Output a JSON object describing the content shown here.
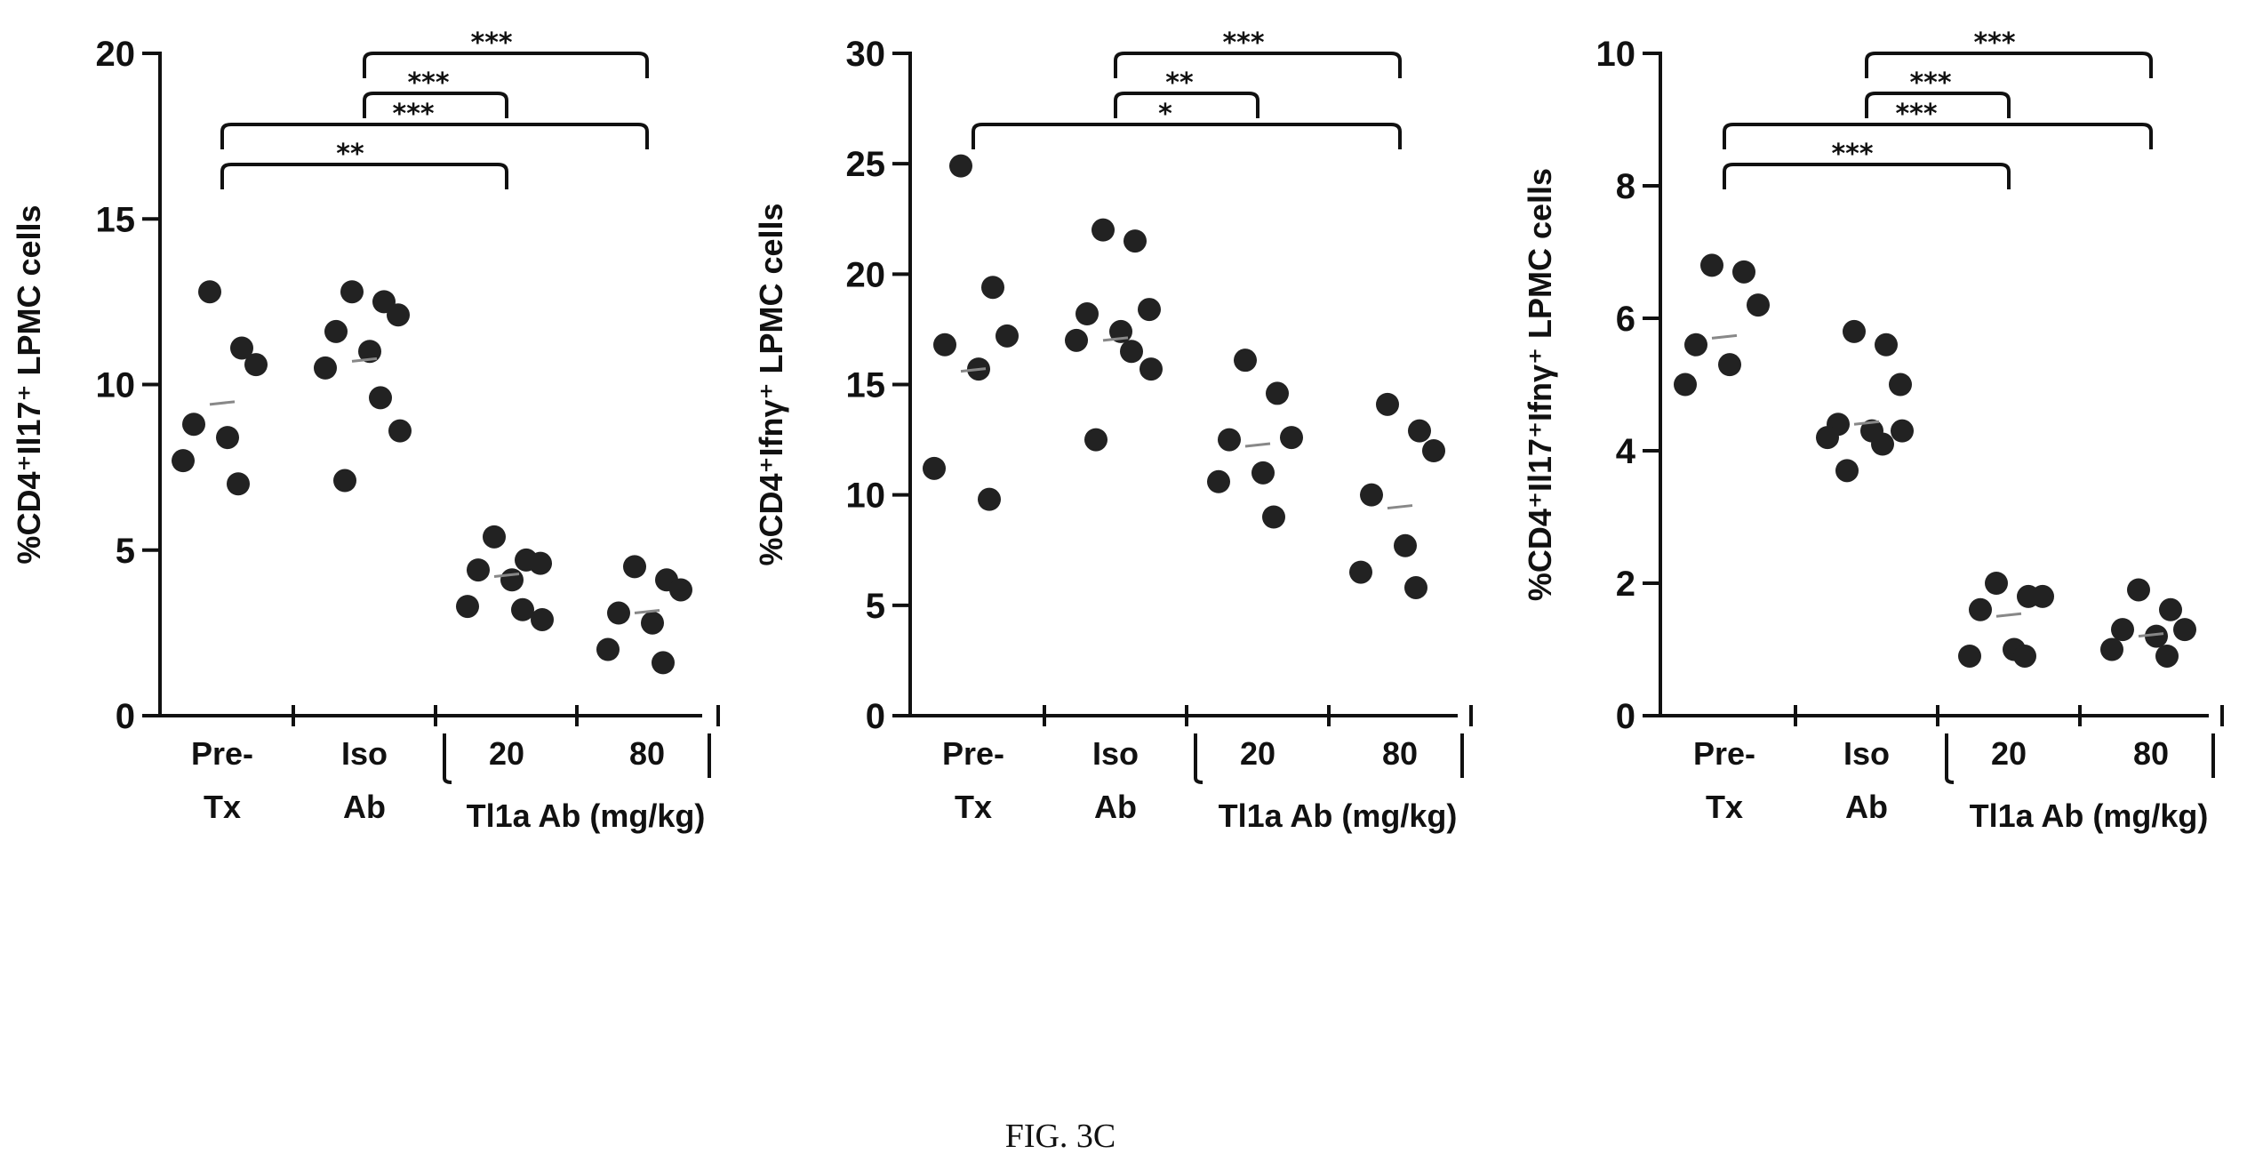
{
  "caption": "FIG. 3C",
  "chart_data": [
    {
      "type": "scatter",
      "ylabel": "%CD4⁺Il17⁺ LPMC cells",
      "ylim": [
        0,
        20
      ],
      "yticks": [
        "0",
        "5",
        "10",
        "15",
        "20"
      ],
      "ytick_values": [
        0,
        5,
        10,
        15,
        20
      ],
      "categories": [
        {
          "line1": "Pre-",
          "line2": "Tx"
        },
        {
          "line1": "Iso",
          "line2": "Ab"
        },
        {
          "line1": "20",
          "line2": ""
        },
        {
          "line1": "80",
          "line2": ""
        }
      ],
      "group_label": "Tl1a Ab (mg/kg)",
      "medians": [
        9.4,
        10.7,
        4.2,
        3.1
      ],
      "points": [
        [
          12.8,
          11.1,
          10.6,
          8.8,
          8.4,
          7.7,
          7.0
        ],
        [
          12.8,
          12.5,
          12.1,
          11.6,
          11.0,
          10.5,
          9.6,
          8.6,
          7.1
        ],
        [
          5.4,
          4.7,
          4.6,
          4.4,
          4.1,
          3.3,
          3.2,
          2.9
        ],
        [
          4.5,
          4.1,
          3.8,
          3.1,
          2.8,
          2.0,
          1.6
        ]
      ],
      "brackets": [
        {
          "from": 0,
          "to": 2,
          "label": "**"
        },
        {
          "from": 0,
          "to": 3,
          "label": "***"
        },
        {
          "from": 1,
          "to": 2,
          "label": "***"
        },
        {
          "from": 1,
          "to": 3,
          "label": "***"
        }
      ]
    },
    {
      "type": "scatter",
      "ylabel": "%CD4⁺Ifnγ⁺ LPMC cells",
      "ylim": [
        0,
        30
      ],
      "yticks": [
        "0",
        "5",
        "10",
        "15",
        "20",
        "25",
        "30"
      ],
      "ytick_values": [
        0,
        5,
        10,
        15,
        20,
        25,
        30
      ],
      "categories": [
        {
          "line1": "Pre-",
          "line2": "Tx"
        },
        {
          "line1": "Iso",
          "line2": "Ab"
        },
        {
          "line1": "20",
          "line2": ""
        },
        {
          "line1": "80",
          "line2": ""
        }
      ],
      "group_label": "Tl1a Ab (mg/kg)",
      "medians": [
        15.6,
        17.0,
        12.2,
        9.4
      ],
      "points": [
        [
          24.9,
          19.4,
          17.2,
          16.8,
          15.7,
          11.2,
          9.8
        ],
        [
          22.0,
          21.5,
          18.4,
          18.2,
          17.4,
          17.0,
          16.5,
          15.7,
          12.5
        ],
        [
          16.1,
          14.6,
          12.6,
          12.5,
          11.0,
          10.6,
          9.0
        ],
        [
          14.1,
          12.9,
          12.0,
          10.0,
          7.7,
          6.5,
          5.8
        ]
      ],
      "brackets": [
        {
          "from": 0,
          "to": 3,
          "label": "*"
        },
        {
          "from": 1,
          "to": 2,
          "label": "**"
        },
        {
          "from": 1,
          "to": 3,
          "label": "***"
        }
      ]
    },
    {
      "type": "scatter",
      "ylabel": "%CD4⁺Il17⁺Ifnγ⁺ LPMC cells",
      "ylim": [
        0,
        10
      ],
      "yticks": [
        "0",
        "2",
        "4",
        "6",
        "8",
        "10"
      ],
      "ytick_values": [
        0,
        2,
        4,
        6,
        8,
        10
      ],
      "categories": [
        {
          "line1": "Pre-",
          "line2": "Tx"
        },
        {
          "line1": "Iso",
          "line2": "Ab"
        },
        {
          "line1": "20",
          "line2": ""
        },
        {
          "line1": "80",
          "line2": ""
        }
      ],
      "group_label": "Tl1a Ab (mg/kg)",
      "medians": [
        5.7,
        4.4,
        1.5,
        1.2
      ],
      "points": [
        [
          6.8,
          6.7,
          6.2,
          5.6,
          5.3,
          5.0
        ],
        [
          5.8,
          5.6,
          5.0,
          4.4,
          4.3,
          4.2,
          4.1,
          4.3,
          3.7
        ],
        [
          2.0,
          1.8,
          1.8,
          1.6,
          1.0,
          0.9,
          0.9
        ],
        [
          1.9,
          1.6,
          1.3,
          1.3,
          1.2,
          1.0,
          0.9
        ]
      ],
      "brackets": [
        {
          "from": 0,
          "to": 2,
          "label": "***"
        },
        {
          "from": 0,
          "to": 3,
          "label": "***"
        },
        {
          "from": 1,
          "to": 2,
          "label": "***"
        },
        {
          "from": 1,
          "to": 3,
          "label": "***"
        }
      ]
    }
  ]
}
